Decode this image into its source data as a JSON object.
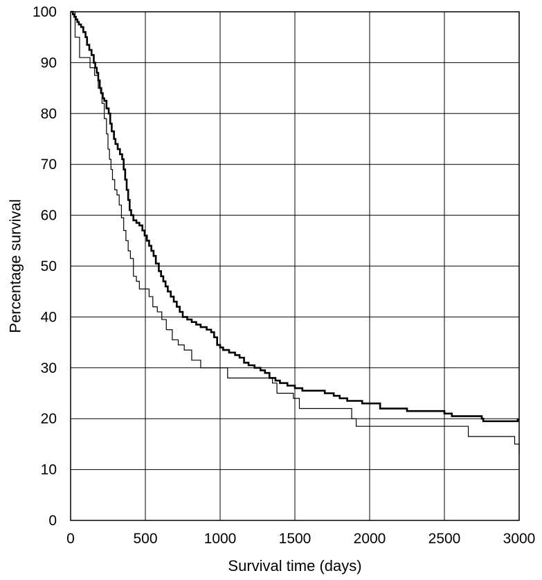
{
  "chart_data": {
    "type": "line",
    "title": "",
    "xlabel": "Survival time (days)",
    "ylabel": "Percentage survival",
    "xlim": [
      0,
      3000
    ],
    "ylim": [
      0,
      100
    ],
    "x_ticks": [
      0,
      500,
      1000,
      1500,
      2000,
      2500,
      3000
    ],
    "y_ticks": [
      0,
      10,
      20,
      30,
      40,
      50,
      60,
      70,
      80,
      90,
      100
    ],
    "grid": true,
    "step": true,
    "series": [
      {
        "style": "thick",
        "points": [
          [
            0,
            100
          ],
          [
            15,
            99.5
          ],
          [
            25,
            99
          ],
          [
            35,
            98.5
          ],
          [
            45,
            98
          ],
          [
            55,
            97.5
          ],
          [
            70,
            97
          ],
          [
            85,
            96
          ],
          [
            100,
            95
          ],
          [
            110,
            93.5
          ],
          [
            125,
            92.5
          ],
          [
            140,
            91.5
          ],
          [
            155,
            90
          ],
          [
            165,
            89
          ],
          [
            175,
            88
          ],
          [
            185,
            86.5
          ],
          [
            195,
            85
          ],
          [
            205,
            84
          ],
          [
            215,
            83
          ],
          [
            225,
            82.5
          ],
          [
            240,
            81
          ],
          [
            255,
            80
          ],
          [
            265,
            78
          ],
          [
            275,
            76.5
          ],
          [
            290,
            75
          ],
          [
            300,
            74
          ],
          [
            315,
            73
          ],
          [
            330,
            72
          ],
          [
            345,
            71
          ],
          [
            355,
            69
          ],
          [
            365,
            67
          ],
          [
            375,
            65
          ],
          [
            385,
            63
          ],
          [
            395,
            61
          ],
          [
            405,
            60
          ],
          [
            420,
            59
          ],
          [
            440,
            58.5
          ],
          [
            460,
            58
          ],
          [
            480,
            57
          ],
          [
            495,
            56
          ],
          [
            510,
            55
          ],
          [
            525,
            54
          ],
          [
            540,
            53
          ],
          [
            555,
            52
          ],
          [
            570,
            50.5
          ],
          [
            590,
            49
          ],
          [
            605,
            48
          ],
          [
            620,
            47
          ],
          [
            635,
            46
          ],
          [
            650,
            45
          ],
          [
            670,
            44
          ],
          [
            690,
            43
          ],
          [
            710,
            42
          ],
          [
            730,
            41
          ],
          [
            750,
            40
          ],
          [
            780,
            39.5
          ],
          [
            810,
            39
          ],
          [
            840,
            38.5
          ],
          [
            870,
            38
          ],
          [
            910,
            37.5
          ],
          [
            940,
            37
          ],
          [
            960,
            36
          ],
          [
            980,
            34.5
          ],
          [
            1000,
            34
          ],
          [
            1020,
            33.5
          ],
          [
            1060,
            33
          ],
          [
            1100,
            32.5
          ],
          [
            1130,
            32
          ],
          [
            1160,
            31
          ],
          [
            1190,
            30.5
          ],
          [
            1230,
            30
          ],
          [
            1270,
            29.5
          ],
          [
            1300,
            29
          ],
          [
            1330,
            28
          ],
          [
            1370,
            27.5
          ],
          [
            1400,
            27
          ],
          [
            1450,
            26.5
          ],
          [
            1500,
            26
          ],
          [
            1550,
            25.5
          ],
          [
            1700,
            25
          ],
          [
            1760,
            24.5
          ],
          [
            1800,
            24
          ],
          [
            1850,
            23.5
          ],
          [
            1950,
            23
          ],
          [
            2070,
            22
          ],
          [
            2250,
            21.5
          ],
          [
            2500,
            21
          ],
          [
            2550,
            20.5
          ],
          [
            2750,
            20
          ],
          [
            2760,
            19.5
          ],
          [
            2990,
            19.8
          ],
          [
            3000,
            19.8
          ]
        ]
      },
      {
        "style": "thin",
        "points": [
          [
            0,
            100
          ],
          [
            30,
            95
          ],
          [
            60,
            91
          ],
          [
            100,
            91
          ],
          [
            130,
            89
          ],
          [
            160,
            87.5
          ],
          [
            185,
            85
          ],
          [
            200,
            84
          ],
          [
            210,
            82
          ],
          [
            225,
            79
          ],
          [
            240,
            76
          ],
          [
            250,
            73
          ],
          [
            260,
            71
          ],
          [
            270,
            69
          ],
          [
            280,
            67
          ],
          [
            295,
            65
          ],
          [
            310,
            64
          ],
          [
            325,
            62
          ],
          [
            340,
            59.5
          ],
          [
            355,
            57
          ],
          [
            370,
            55
          ],
          [
            385,
            53
          ],
          [
            400,
            51.5
          ],
          [
            420,
            48
          ],
          [
            440,
            47
          ],
          [
            460,
            45.5
          ],
          [
            500,
            45.5
          ],
          [
            525,
            44
          ],
          [
            550,
            42
          ],
          [
            580,
            41
          ],
          [
            610,
            39.5
          ],
          [
            640,
            37.5
          ],
          [
            680,
            35.5
          ],
          [
            720,
            34.5
          ],
          [
            760,
            33.5
          ],
          [
            810,
            31.5
          ],
          [
            870,
            30
          ],
          [
            1000,
            30
          ],
          [
            1050,
            28
          ],
          [
            1300,
            28
          ],
          [
            1350,
            27
          ],
          [
            1380,
            25
          ],
          [
            1490,
            24
          ],
          [
            1530,
            22
          ],
          [
            1850,
            22
          ],
          [
            1880,
            20
          ],
          [
            1910,
            18.5
          ],
          [
            2650,
            18.5
          ],
          [
            2660,
            16.5
          ],
          [
            2960,
            16.5
          ],
          [
            2970,
            15
          ],
          [
            2990,
            15
          ],
          [
            3000,
            13
          ]
        ]
      }
    ]
  }
}
